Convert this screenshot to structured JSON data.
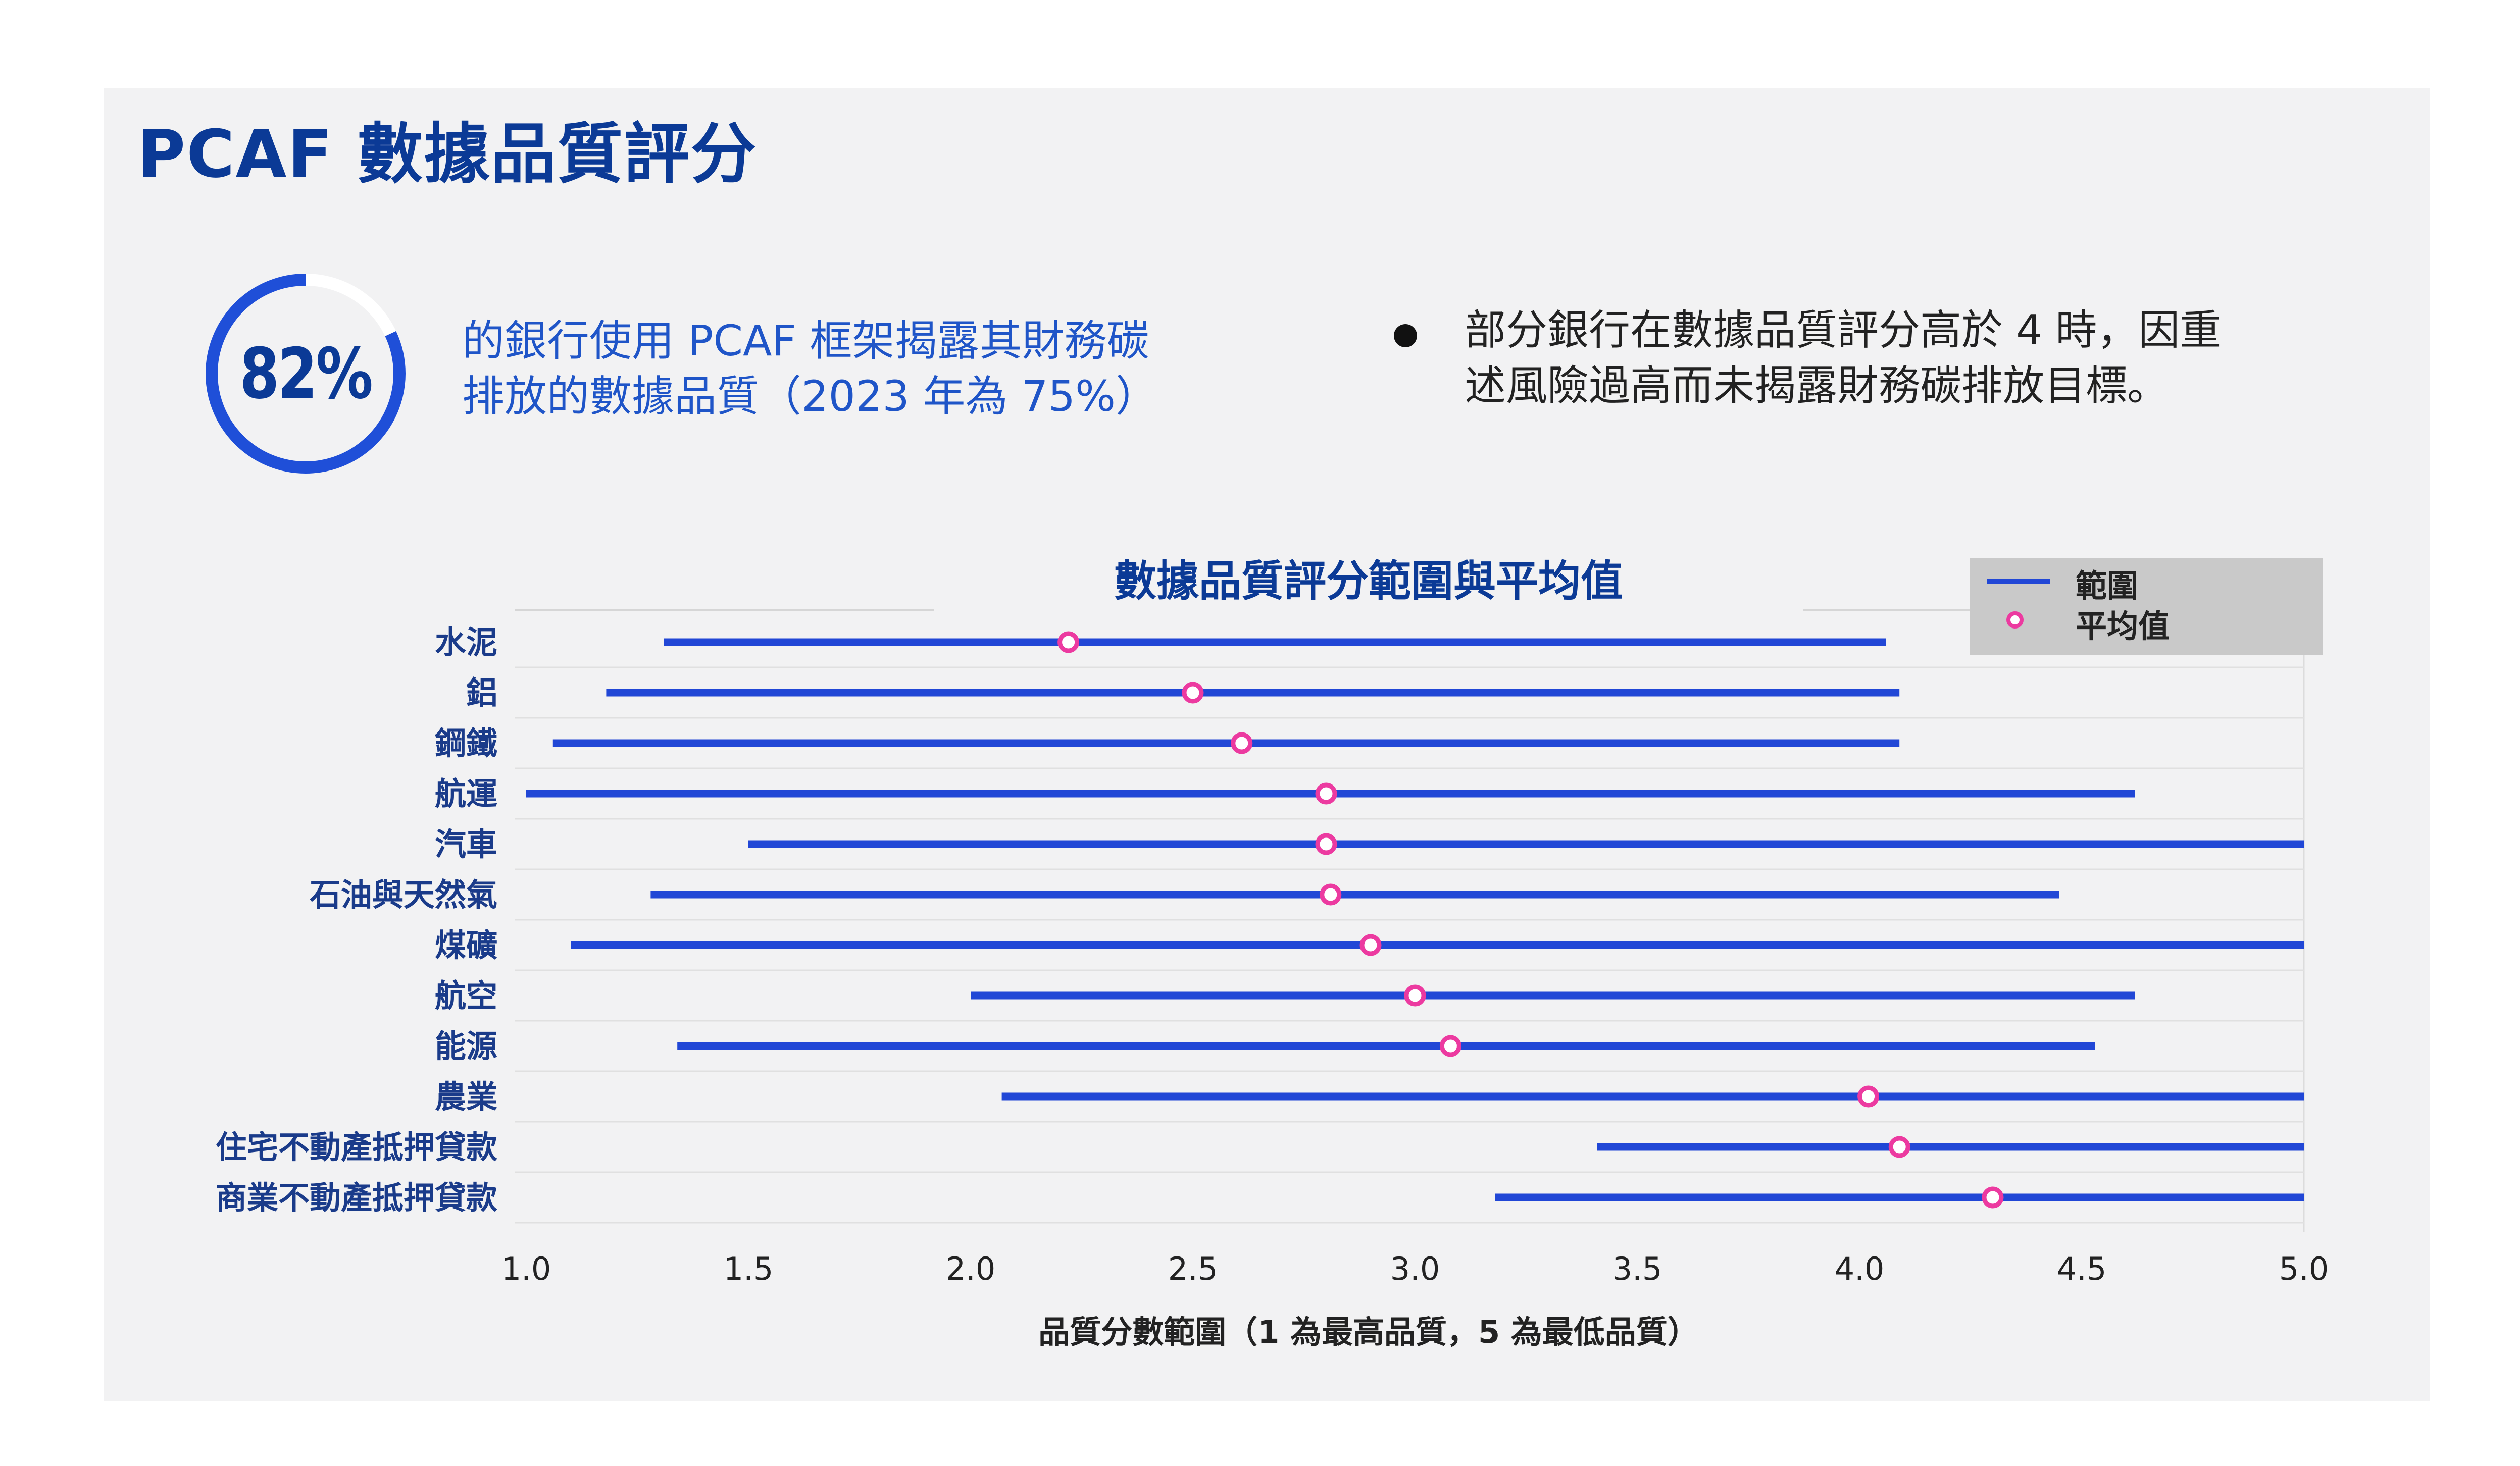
{
  "page": {
    "title": "PCAF 數據品質評分",
    "kpi": {
      "value": "82%",
      "fraction": 0.82,
      "line1": "的銀行使用 PCAF 框架揭露其財務碳",
      "line2": "排放的數據品質（2023 年為 75%）"
    },
    "note": {
      "line1": "部分銀行在數據品質評分高於 4 時，因重",
      "line2": "述風險過高而未揭露財務碳排放目標。"
    }
  },
  "colors": {
    "title": "#0b3a96",
    "accent": "#1f55c8",
    "range_line": "#2147d6",
    "mean_marker": "#ec3aa0",
    "panel": "#f2f2f3",
    "ring_track": "#ffffff"
  },
  "chart_data": {
    "type": "range-dot",
    "title": "數據品質評分範圍與平均值",
    "xlabel": "品質分數範圍（1 為最高品質，5 為最低品質）",
    "xlim": [
      1.0,
      5.0
    ],
    "xticks": [
      "1.0",
      "1.5",
      "2.0",
      "2.5",
      "3.0",
      "3.5",
      "4.0",
      "4.5",
      "5.0"
    ],
    "grid": true,
    "legend_position": "top-right",
    "legend": [
      {
        "name": "範圍",
        "marker": "line"
      },
      {
        "name": "平均值",
        "marker": "circle"
      }
    ],
    "categories": [
      "水泥",
      "鋁",
      "鋼鐵",
      "航運",
      "汽車",
      "石油與天然氣",
      "煤礦",
      "航空",
      "能源",
      "農業",
      "住宅不動產抵押貸款",
      "商業不動產抵押貸款"
    ],
    "series": [
      {
        "name": "範圍",
        "type": "range",
        "min": [
          1.31,
          1.18,
          1.06,
          1.0,
          1.5,
          1.28,
          1.1,
          2.0,
          1.34,
          2.07,
          3.41,
          3.18
        ],
        "max": [
          4.06,
          4.09,
          4.09,
          4.62,
          5.0,
          4.45,
          5.0,
          4.62,
          4.53,
          5.0,
          5.0,
          5.0
        ]
      },
      {
        "name": "平均值",
        "type": "point",
        "values": [
          2.22,
          2.5,
          2.61,
          2.8,
          2.8,
          2.81,
          2.9,
          3.0,
          3.08,
          4.02,
          4.09,
          4.3
        ]
      }
    ]
  }
}
